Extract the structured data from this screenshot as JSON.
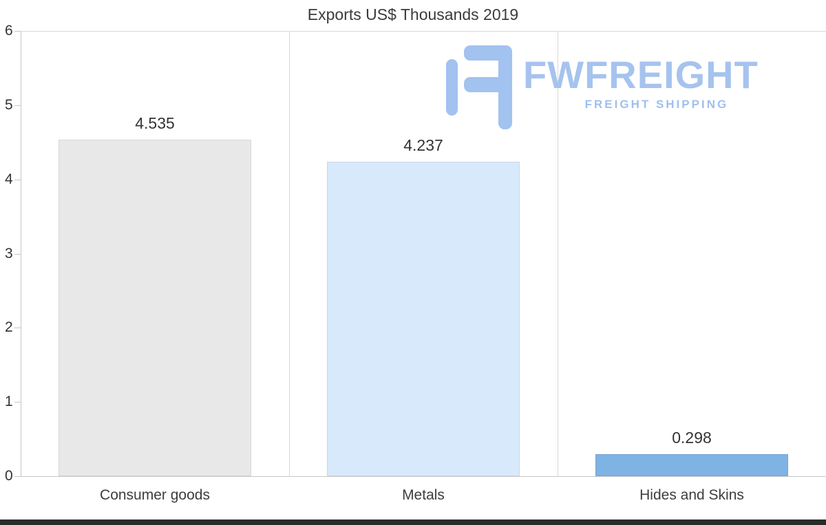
{
  "page": {
    "background": "#ffffff",
    "footer_bar_color": "#2a2a2a"
  },
  "chart_data": {
    "type": "bar",
    "title": "Exports US$ Thousands 2019",
    "categories": [
      "Consumer goods",
      "Metals",
      "Hides and Skins"
    ],
    "values": [
      4.535,
      4.237,
      0.298
    ],
    "value_labels": [
      "4.535",
      "4.237",
      "0.298"
    ],
    "bar_colors": [
      "#e8e8e8",
      "#d7e9fb",
      "#7fb3e3"
    ],
    "xlabel": "",
    "ylabel": "",
    "ylim": [
      0,
      6
    ],
    "yticks": [
      0,
      1,
      2,
      3,
      4,
      5,
      6
    ],
    "grid": "vertical-column-separators",
    "legend": "none"
  },
  "watermark": {
    "brand": "FWFREIGHT",
    "tagline": "FREIGHT SHIPPING",
    "color": "#a6c3ee"
  }
}
